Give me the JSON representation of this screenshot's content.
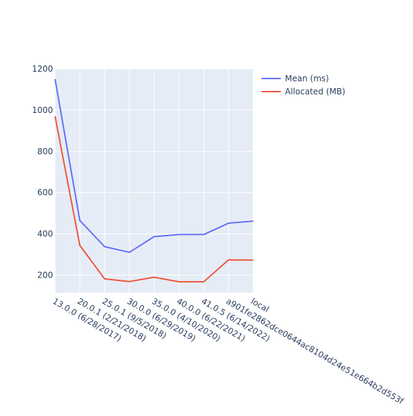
{
  "chart_data": {
    "type": "line",
    "title": "",
    "xlabel": "",
    "ylabel": "",
    "categories": [
      "13.0.0 (6/28/2017)",
      "20.0.1 (2/21/2018)",
      "25.0.1 (9/5/2018)",
      "30.0.0 (6/29/2019)",
      "35.0.0 (4/10/2020)",
      "40.0.0 (6/22/2021)",
      "41.0.5 (6/14/2022)",
      "a901fe2862dce0644ac8104d24e51e664b2d553f",
      "local"
    ],
    "ylim": [
      115,
      1200
    ],
    "yticks": [
      200,
      400,
      600,
      800,
      1000,
      1200
    ],
    "grid": true,
    "legend_position": "top-right",
    "series": [
      {
        "name": "Mean (ms)",
        "color": "#636efa",
        "values": [
          1150,
          465,
          338,
          311,
          387,
          397,
          397,
          452,
          462
        ]
      },
      {
        "name": "Allocated (MB)",
        "color": "#ef553b",
        "values": [
          970,
          344,
          182,
          169,
          190,
          168,
          168,
          274,
          273
        ]
      }
    ]
  }
}
